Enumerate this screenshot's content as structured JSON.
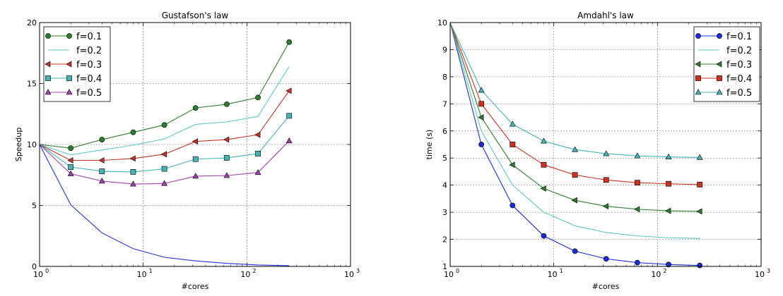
{
  "chart_data": [
    {
      "type": "line",
      "title": "Gustafson's law",
      "xlabel": "#cores",
      "ylabel": "Speedup",
      "xscale": "log",
      "xlim": [
        1,
        1000
      ],
      "ylim": [
        0,
        20
      ],
      "xticks": [
        {
          "v": 1,
          "base": "10",
          "exp": "0"
        },
        {
          "v": 10,
          "base": "10",
          "exp": "1"
        },
        {
          "v": 100,
          "base": "10",
          "exp": "2"
        },
        {
          "v": 1000,
          "base": "10",
          "exp": "3"
        }
      ],
      "yticks": [
        {
          "v": 0,
          "label": "0"
        },
        {
          "v": 5,
          "label": "5"
        },
        {
          "v": 10,
          "label": "10"
        },
        {
          "v": 15,
          "label": "15"
        },
        {
          "v": 20,
          "label": "20"
        }
      ],
      "grid": true,
      "legend_position": "top-left",
      "x": [
        1,
        2,
        4,
        8,
        16,
        32,
        64,
        128,
        256
      ],
      "series": [
        {
          "name": "f=0.1",
          "color": "#2e7d2e",
          "marker": "circle",
          "values": [
            10,
            9.7,
            10.4,
            11.0,
            11.6,
            13.0,
            13.3,
            13.85,
            18.4
          ]
        },
        {
          "name": "f=0.2",
          "color": "#5fc8c8",
          "marker": "none",
          "values": [
            10,
            9.15,
            9.55,
            9.95,
            10.45,
            11.65,
            11.85,
            12.3,
            16.4
          ]
        },
        {
          "name": "f=0.3",
          "color": "#c83228",
          "marker": "triangle-left",
          "values": [
            10,
            8.7,
            8.7,
            8.85,
            9.2,
            10.25,
            10.4,
            10.8,
            14.4
          ]
        },
        {
          "name": "f=0.4",
          "color": "#46b4b4",
          "marker": "square",
          "values": [
            10,
            8.15,
            7.8,
            7.75,
            8.0,
            8.8,
            8.9,
            9.25,
            12.35
          ]
        },
        {
          "name": "f=0.5",
          "color": "#a040b0",
          "marker": "triangle-up",
          "values": [
            10,
            7.6,
            7.0,
            6.75,
            6.8,
            7.4,
            7.45,
            7.7,
            10.3
          ]
        },
        {
          "name": "",
          "color": "#2233dd",
          "marker": "none",
          "values": [
            10,
            5.05,
            2.75,
            1.45,
            0.75,
            0.45,
            0.25,
            0.12,
            0.06
          ]
        }
      ]
    },
    {
      "type": "line",
      "title": "Amdahl's law",
      "xlabel": "#cores",
      "ylabel": "time (s)",
      "xscale": "log",
      "xlim": [
        1,
        1000
      ],
      "ylim": [
        1,
        10
      ],
      "xticks": [
        {
          "v": 1,
          "base": "10",
          "exp": "0"
        },
        {
          "v": 10,
          "base": "10",
          "exp": "1"
        },
        {
          "v": 100,
          "base": "10",
          "exp": "2"
        },
        {
          "v": 1000,
          "base": "10",
          "exp": "3"
        }
      ],
      "yticks": [
        {
          "v": 1,
          "label": "1"
        },
        {
          "v": 2,
          "label": "2"
        },
        {
          "v": 3,
          "label": "3"
        },
        {
          "v": 4,
          "label": "4"
        },
        {
          "v": 5,
          "label": "5"
        },
        {
          "v": 6,
          "label": "6"
        },
        {
          "v": 7,
          "label": "7"
        },
        {
          "v": 8,
          "label": "8"
        },
        {
          "v": 9,
          "label": "9"
        },
        {
          "v": 10,
          "label": "10"
        }
      ],
      "grid": true,
      "legend_position": "top-right",
      "x": [
        1,
        2,
        4,
        8,
        16,
        32,
        64,
        128,
        256
      ],
      "series": [
        {
          "name": "f=0.1",
          "color": "#1a2bd6",
          "marker": "circle",
          "values": [
            10,
            5.5,
            3.25,
            2.125,
            1.5625,
            1.28,
            1.14,
            1.07,
            1.035
          ]
        },
        {
          "name": "f=0.2",
          "color": "#5fc8c8",
          "marker": "none",
          "values": [
            10,
            6.0,
            4.0,
            3.0,
            2.5,
            2.25,
            2.125,
            2.06,
            2.03
          ]
        },
        {
          "name": "f=0.3",
          "color": "#2e7d2e",
          "marker": "triangle-left",
          "values": [
            10,
            6.5,
            4.75,
            3.875,
            3.44,
            3.22,
            3.11,
            3.05,
            3.03
          ]
        },
        {
          "name": "f=0.4",
          "color": "#d03020",
          "marker": "square",
          "values": [
            10,
            7.0,
            5.5,
            4.75,
            4.375,
            4.19,
            4.09,
            4.05,
            4.02
          ]
        },
        {
          "name": "f=0.5",
          "color": "#46b4b4",
          "marker": "triangle-up",
          "values": [
            10,
            7.5,
            6.25,
            5.625,
            5.31,
            5.16,
            5.08,
            5.04,
            5.02
          ]
        }
      ]
    }
  ]
}
